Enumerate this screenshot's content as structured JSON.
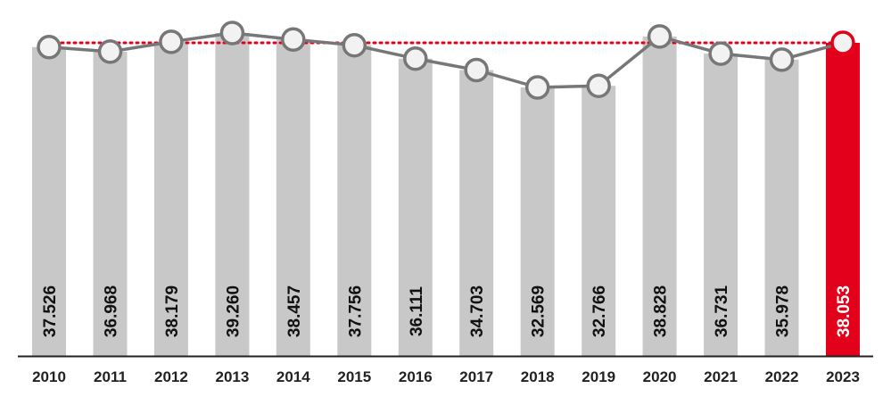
{
  "chart_data": {
    "type": "bar",
    "overlay": "line",
    "categories": [
      "2010",
      "2011",
      "2012",
      "2013",
      "2014",
      "2015",
      "2016",
      "2017",
      "2018",
      "2019",
      "2020",
      "2021",
      "2022",
      "2023"
    ],
    "values": [
      37.526,
      36.968,
      38.179,
      39.26,
      38.457,
      37.756,
      36.111,
      34.703,
      32.569,
      32.766,
      38.828,
      36.731,
      35.978,
      38.053
    ],
    "value_labels": [
      "37.526",
      "36.968",
      "38.179",
      "39.260",
      "38.457",
      "37.756",
      "36.111",
      "34.703",
      "32.569",
      "32.766",
      "38.828",
      "36.731",
      "35.978",
      "38.053"
    ],
    "reference_line": {
      "value": 38.053,
      "style": "dotted",
      "color": "#e2001a"
    },
    "highlight_index": 13,
    "colors": {
      "bar": "#c8c8c8",
      "highlight_bar": "#e2001a",
      "line": "#777777",
      "marker_fill": "#f2f2f2",
      "marker_stroke": "#777777",
      "highlight_marker_stroke": "#e2001a",
      "label": "#111111",
      "highlight_label": "#ffffff",
      "axis": "#222222"
    },
    "title": "",
    "xlabel": "",
    "ylabel": "",
    "grid": false,
    "legend": "none"
  }
}
